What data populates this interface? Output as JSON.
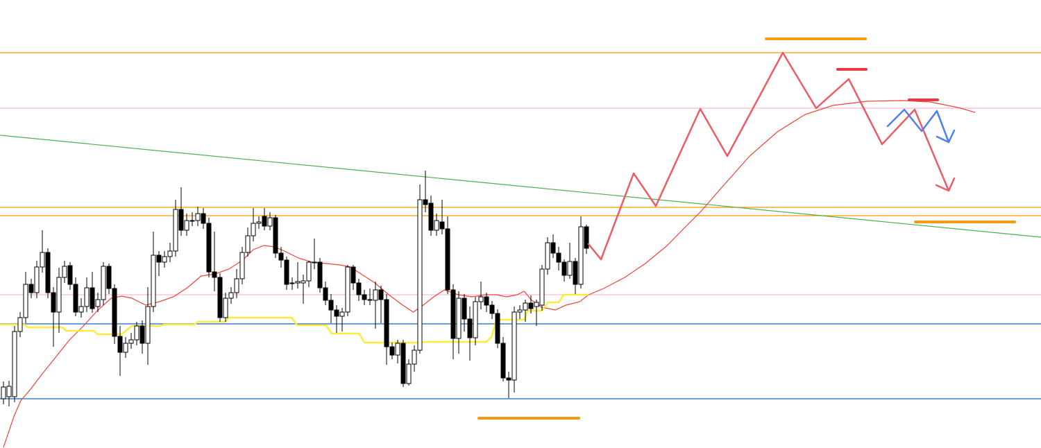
{
  "chart_data": {
    "type": "candlestick",
    "xlim": [
      -0.625,
      186.875
    ],
    "ylim": [
      0,
      646
    ],
    "up_color": "#ffffff",
    "down_color": "#000000",
    "levels": [
      {
        "value": 570,
        "color": "#ff9800"
      },
      {
        "value": 347,
        "color": "#ff9800"
      },
      {
        "value": 335,
        "color": "#ff9800"
      },
      {
        "value": 490,
        "color": "#f8bbd0"
      },
      {
        "value": 221,
        "color": "#f8bbd0"
      },
      {
        "value": 179,
        "color": "#1565c0"
      },
      {
        "value": 71,
        "color": "#1565c0"
      }
    ],
    "trendline": {
      "x": [
        -0.6,
        186.9
      ],
      "values": [
        451,
        304
      ],
      "color": "#4caf50"
    },
    "candles": [
      [
        71,
        96,
        63,
        88
      ],
      [
        74,
        97,
        60,
        89
      ],
      [
        74,
        176,
        66,
        168
      ],
      [
        168,
        196,
        160,
        188
      ],
      [
        188,
        254,
        180,
        236
      ],
      [
        236,
        244,
        216,
        224
      ],
      [
        224,
        270,
        216,
        261
      ],
      [
        261,
        314,
        253,
        282
      ],
      [
        282,
        288,
        216,
        224
      ],
      [
        224,
        232,
        146,
        196
      ],
      [
        196,
        260,
        166,
        246
      ],
      [
        246,
        270,
        238,
        262
      ],
      [
        263,
        268,
        228,
        236
      ],
      [
        236,
        246,
        190,
        196
      ],
      [
        196,
        216,
        188,
        204
      ],
      [
        204,
        246,
        196,
        231
      ],
      [
        231,
        254,
        195,
        201
      ],
      [
        204,
        224,
        196,
        214
      ],
      [
        214,
        268,
        206,
        262
      ],
      [
        262,
        266,
        222,
        230
      ],
      [
        230,
        236,
        150,
        161
      ],
      [
        161,
        176,
        104,
        138
      ],
      [
        138,
        160,
        130,
        151
      ],
      [
        151,
        166,
        143,
        156
      ],
      [
        156,
        182,
        148,
        176
      ],
      [
        176,
        184,
        136,
        151
      ],
      [
        151,
        232,
        120,
        204
      ],
      [
        204,
        312,
        196,
        278
      ],
      [
        278,
        284,
        248,
        268
      ],
      [
        268,
        284,
        260,
        276
      ],
      [
        276,
        296,
        268,
        284
      ],
      [
        284,
        358,
        276,
        344
      ],
      [
        344,
        376,
        306,
        314
      ],
      [
        314,
        338,
        306,
        328
      ],
      [
        328,
        340,
        320,
        328
      ],
      [
        328,
        348,
        320,
        338
      ],
      [
        338,
        346,
        316,
        324
      ],
      [
        324,
        332,
        246,
        254
      ],
      [
        254,
        312,
        226,
        246
      ],
      [
        246,
        252,
        182,
        188
      ],
      [
        188,
        224,
        182,
        216
      ],
      [
        216,
        232,
        208,
        224
      ],
      [
        224,
        258,
        216,
        244
      ],
      [
        244,
        290,
        236,
        282
      ],
      [
        282,
        318,
        276,
        306
      ],
      [
        306,
        346,
        298,
        324
      ],
      [
        324,
        334,
        316,
        326
      ],
      [
        334,
        346,
        314,
        320
      ],
      [
        320,
        340,
        314,
        332
      ],
      [
        332,
        336,
        274,
        281
      ],
      [
        281,
        290,
        260,
        271
      ],
      [
        271,
        276,
        228,
        236
      ],
      [
        238,
        246,
        228,
        238
      ],
      [
        238,
        268,
        230,
        240
      ],
      [
        238,
        250,
        208,
        241
      ],
      [
        241,
        270,
        232,
        268
      ],
      [
        268,
        302,
        258,
        268
      ],
      [
        268,
        274,
        224,
        231
      ],
      [
        231,
        240,
        206,
        213
      ],
      [
        213,
        222,
        180,
        199
      ],
      [
        199,
        206,
        166,
        190
      ],
      [
        190,
        202,
        168,
        196
      ],
      [
        196,
        264,
        190,
        261
      ],
      [
        261,
        264,
        228,
        238
      ],
      [
        238,
        244,
        212,
        221
      ],
      [
        221,
        228,
        206,
        214
      ],
      [
        214,
        230,
        206,
        213
      ],
      [
        213,
        240,
        172,
        228
      ],
      [
        228,
        234,
        180,
        214
      ],
      [
        214,
        222,
        120,
        146
      ],
      [
        146,
        152,
        128,
        134
      ],
      [
        134,
        156,
        122,
        151
      ],
      [
        151,
        156,
        88,
        93
      ],
      [
        93,
        128,
        90,
        121
      ],
      [
        121,
        148,
        110,
        141
      ],
      [
        141,
        380,
        136,
        358
      ],
      [
        358,
        400,
        340,
        351
      ],
      [
        353,
        364,
        306,
        314
      ],
      [
        314,
        338,
        306,
        328
      ],
      [
        326,
        358,
        308,
        316
      ],
      [
        316,
        334,
        222,
        228
      ],
      [
        228,
        236,
        128,
        158
      ],
      [
        158,
        226,
        136,
        216
      ],
      [
        216,
        222,
        168,
        186
      ],
      [
        186,
        204,
        126,
        159
      ],
      [
        159,
        218,
        148,
        211
      ],
      [
        211,
        240,
        200,
        218
      ],
      [
        218,
        224,
        196,
        206
      ],
      [
        206,
        212,
        186,
        194
      ],
      [
        194,
        200,
        144,
        151
      ],
      [
        151,
        160,
        96,
        101
      ],
      [
        101,
        110,
        72,
        98
      ],
      [
        98,
        204,
        80,
        196
      ],
      [
        196,
        206,
        186,
        199
      ],
      [
        199,
        214,
        182,
        209
      ],
      [
        209,
        220,
        194,
        201
      ],
      [
        204,
        214,
        176,
        210
      ],
      [
        206,
        264,
        198,
        258
      ],
      [
        258,
        304,
        250,
        296
      ],
      [
        296,
        308,
        274,
        281
      ],
      [
        281,
        290,
        256,
        268
      ],
      [
        268,
        272,
        240,
        249
      ],
      [
        249,
        296,
        244,
        269
      ],
      [
        269,
        274,
        222,
        236
      ],
      [
        236,
        334,
        230,
        319
      ],
      [
        319,
        322,
        280,
        288
      ]
    ],
    "series": [
      {
        "color": "#f44336",
        "x": [
          0,
          1.9,
          3.1,
          5,
          6.9,
          9.4,
          11.9,
          14.4,
          16.9,
          19.4,
          21.3,
          23.1,
          25.6,
          28.1,
          30.6,
          33.1,
          35.6,
          38.1,
          40.6,
          43.1,
          45,
          46.9,
          48.8,
          50.6,
          53.1,
          55.6,
          58.1,
          60.6,
          62.5,
          64.4,
          66.9,
          69.4,
          71.9,
          73.8,
          75.6,
          77.5,
          79.4,
          81.9,
          84.4,
          86.9,
          88.8,
          90.6,
          92.5,
          93.8,
          95,
          96.9,
          99.4,
          101.3,
          103.8,
          105.4,
          108.1,
          111.9,
          115.6,
          119.4,
          123.1,
          125.6,
          129.4,
          134.4,
          139.4,
          144.4,
          149.4,
          155.6,
          161.9,
          166.9,
          171.9,
          175
        ],
        "values": [
          1,
          46,
          68,
          86,
          106,
          131,
          156,
          176,
          198,
          216,
          219,
          216,
          206,
          211,
          218,
          231,
          248,
          251,
          258,
          271,
          286,
          292,
          290,
          284,
          274,
          268,
          266,
          264,
          261,
          251,
          238,
          221,
          206,
          196,
          206,
          218,
          228,
          221,
          218,
          221,
          221,
          218,
          221,
          226,
          214,
          203,
          199,
          206,
          211,
          221,
          230,
          246,
          266,
          291,
          321,
          341,
          376,
          421,
          456,
          481,
          494,
          500,
          501,
          499,
          491,
          484
        ]
      },
      {
        "color": "#ffeb3b",
        "x": [
          -0.6,
          3.8,
          4.4,
          10.6,
          11.3,
          16.3,
          16.9,
          21.3,
          23.1,
          28.1,
          28.9,
          34.4,
          35,
          40,
          40.6,
          51.9,
          52.9,
          58.1,
          59.1,
          64.1,
          65,
          74.4,
          76.3,
          86.9,
          87.9,
          88.8,
          93.8,
          94.4,
          96.9,
          98.1,
          100,
          100.9,
          105.4
        ],
        "values": [
          178,
          178,
          174,
          174,
          169,
          169,
          164,
          164,
          176,
          176,
          178,
          178,
          182,
          182,
          188,
          188,
          177,
          177,
          165,
          165,
          152,
          152,
          153,
          153,
          160,
          185,
          185,
          198,
          198,
          210,
          210,
          221,
          221
        ]
      }
    ]
  }
}
